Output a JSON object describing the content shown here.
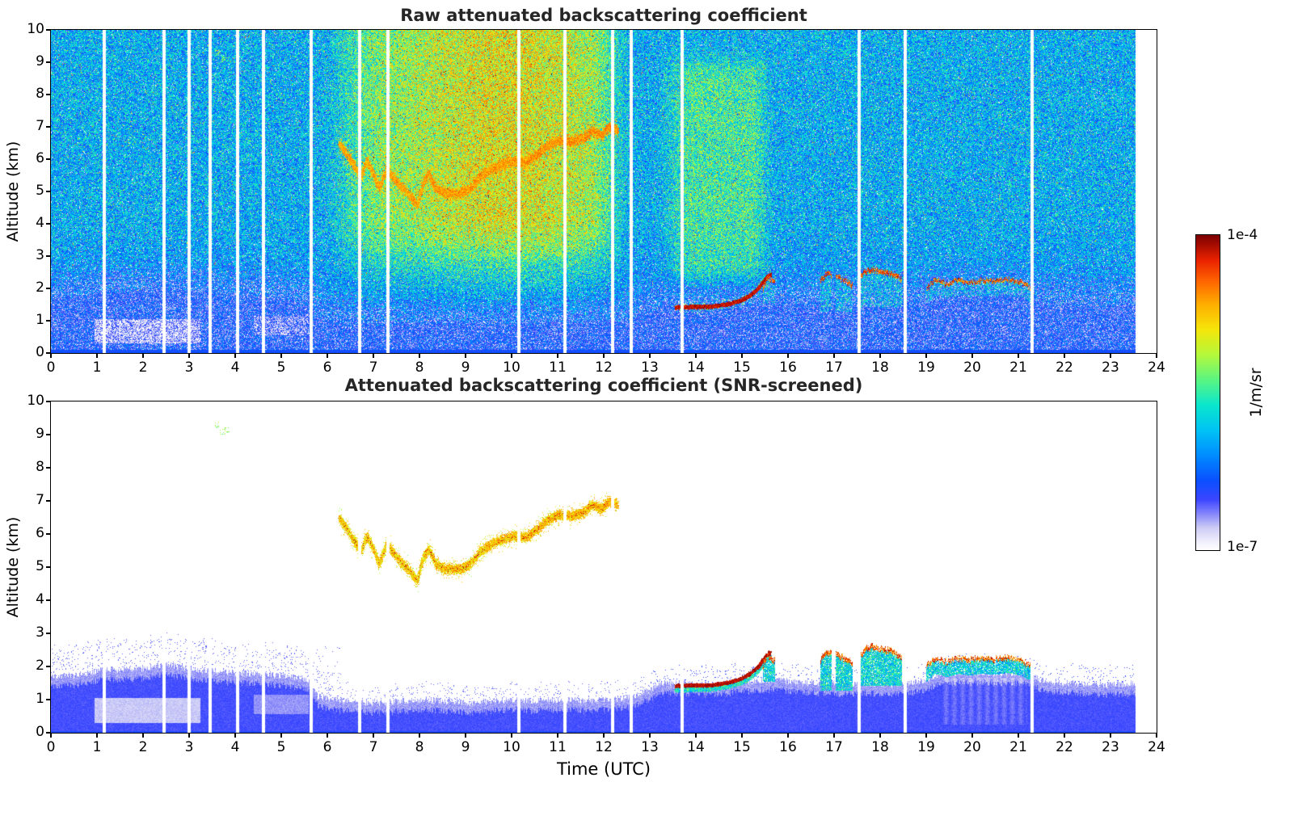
{
  "colorbar": {
    "top_label": "1e-4",
    "bottom_label": "1e-7",
    "unit_label": "1/m/sr",
    "scale": "log",
    "vmin": 1e-07,
    "vmax": 0.0001
  },
  "chart_data": [
    {
      "type": "heatmap",
      "title": "Raw attenuated backscattering coefficient",
      "xlabel": "",
      "ylabel": "Altitude (km)",
      "xlim": [
        0,
        24
      ],
      "ylim": [
        0,
        10
      ],
      "xticks": [
        0,
        1,
        2,
        3,
        4,
        5,
        6,
        7,
        8,
        9,
        10,
        11,
        12,
        13,
        14,
        15,
        16,
        17,
        18,
        19,
        20,
        21,
        22,
        23,
        24
      ],
      "yticks": [
        0,
        1,
        2,
        3,
        4,
        5,
        6,
        7,
        8,
        9,
        10
      ],
      "units": "1/m/sr",
      "value_range": [
        "1e-7",
        "1e-4"
      ],
      "summary": "Unscreened lidar speckle over full frame: dense blue boundary layer below ~2 km, cyan-green night noise aloft, orange-red daytime solar background 06:00-12:30 UTC above ~3 km, yellow-green noise band 13:15-15:40 UTC, elevated aerosol layer 4.5-7.2 km (06:15-12:20 UTC) and low clouds 1.4-2.6 km (13:30-21:15 UTC)"
    },
    {
      "type": "heatmap",
      "title": "Attenuated backscattering coefficient (SNR-screened)",
      "xlabel": "Time (UTC)",
      "ylabel": "Altitude (km)",
      "xlim": [
        0,
        24
      ],
      "ylim": [
        0,
        10
      ],
      "xticks": [
        0,
        1,
        2,
        3,
        4,
        5,
        6,
        7,
        8,
        9,
        10,
        11,
        12,
        13,
        14,
        15,
        16,
        17,
        18,
        19,
        20,
        21,
        22,
        23,
        24
      ],
      "yticks": [
        0,
        1,
        2,
        3,
        4,
        5,
        6,
        7,
        8,
        9,
        10
      ],
      "units": "1/m/sr",
      "value_range": [
        "1e-7",
        "1e-4"
      ],
      "summary": "Low-SNR pixels removed (white). Blue boundary layer 0-2 km all day, yellow-orange elevated aerosol layer 4.5-7.2 km between 06:15-12:20 UTC, shallow cloud layers near 1.4-2.6 km between 13:30-21:15 UTC"
    }
  ],
  "scene": {
    "time_end": 23.55,
    "gap_times": [
      1.15,
      2.45,
      3.0,
      3.45,
      4.05,
      4.62,
      5.65,
      6.7,
      7.32,
      10.15,
      11.15,
      12.2,
      12.6,
      13.7,
      17.55,
      18.55,
      21.3
    ],
    "gap_width": 0.07,
    "boundary_layer_depth": [
      [
        0,
        1.7
      ],
      [
        0.6,
        1.75
      ],
      [
        1.1,
        1.9
      ],
      [
        1.6,
        1.9
      ],
      [
        2.1,
        1.95
      ],
      [
        2.45,
        2.05
      ],
      [
        2.8,
        2.0
      ],
      [
        3.1,
        1.9
      ],
      [
        3.5,
        1.85
      ],
      [
        4.1,
        1.8
      ],
      [
        4.7,
        1.75
      ],
      [
        5.2,
        1.7
      ],
      [
        5.6,
        1.6
      ],
      [
        5.8,
        1.1
      ],
      [
        6.1,
        1.0
      ],
      [
        6.6,
        0.95
      ],
      [
        7.1,
        0.9
      ],
      [
        7.6,
        0.95
      ],
      [
        8.1,
        1.0
      ],
      [
        8.6,
        0.95
      ],
      [
        9.1,
        0.9
      ],
      [
        9.6,
        0.95
      ],
      [
        10.1,
        1.0
      ],
      [
        10.6,
        0.95
      ],
      [
        11.1,
        1.0
      ],
      [
        11.6,
        0.95
      ],
      [
        12.1,
        1.0
      ],
      [
        12.5,
        1.05
      ],
      [
        12.9,
        1.25
      ],
      [
        13.3,
        1.5
      ],
      [
        13.7,
        1.5
      ],
      [
        14.2,
        1.45
      ],
      [
        14.7,
        1.5
      ],
      [
        15.1,
        1.55
      ],
      [
        15.6,
        1.6
      ],
      [
        16.1,
        1.55
      ],
      [
        16.6,
        1.5
      ],
      [
        17.1,
        1.45
      ],
      [
        17.6,
        1.5
      ],
      [
        18.1,
        1.45
      ],
      [
        18.6,
        1.5
      ],
      [
        19.0,
        1.6
      ],
      [
        19.3,
        1.8
      ],
      [
        20.0,
        1.8
      ],
      [
        20.6,
        1.8
      ],
      [
        21.1,
        1.8
      ],
      [
        21.3,
        1.7
      ],
      [
        21.6,
        1.55
      ],
      [
        22.1,
        1.5
      ],
      [
        22.6,
        1.45
      ],
      [
        23.1,
        1.45
      ],
      [
        23.55,
        1.5
      ]
    ],
    "aerosol_layer_path": [
      [
        6.25,
        6.5
      ],
      [
        6.42,
        6.15
      ],
      [
        6.58,
        5.8
      ],
      [
        6.72,
        5.45
      ],
      [
        6.85,
        5.95
      ],
      [
        7.0,
        5.55
      ],
      [
        7.12,
        5.1
      ],
      [
        7.28,
        5.7
      ],
      [
        7.45,
        5.4
      ],
      [
        7.6,
        5.15
      ],
      [
        7.78,
        4.9
      ],
      [
        7.95,
        4.6
      ],
      [
        8.08,
        5.3
      ],
      [
        8.2,
        5.55
      ],
      [
        8.35,
        5.1
      ],
      [
        8.55,
        4.95
      ],
      [
        8.9,
        4.95
      ],
      [
        9.1,
        5.1
      ],
      [
        9.3,
        5.45
      ],
      [
        9.55,
        5.7
      ],
      [
        9.8,
        5.85
      ],
      [
        10.05,
        5.95
      ],
      [
        10.3,
        5.9
      ],
      [
        10.55,
        6.15
      ],
      [
        10.8,
        6.45
      ],
      [
        11.05,
        6.6
      ],
      [
        11.3,
        6.55
      ],
      [
        11.55,
        6.65
      ],
      [
        11.75,
        6.9
      ],
      [
        11.95,
        6.75
      ],
      [
        12.1,
        7.0
      ],
      [
        12.3,
        6.9
      ]
    ],
    "cloud_line_path": [
      [
        13.55,
        1.42
      ],
      [
        13.9,
        1.44
      ],
      [
        14.3,
        1.44
      ],
      [
        14.7,
        1.52
      ],
      [
        15.0,
        1.65
      ],
      [
        15.2,
        1.82
      ],
      [
        15.35,
        2.0
      ],
      [
        15.5,
        2.3
      ],
      [
        15.62,
        2.45
      ]
    ],
    "cloud_clusters": [
      {
        "t0": 16.7,
        "t1": 17.38,
        "base": 1.3,
        "gap": [
          16.95,
          17.03
        ],
        "tops": [
          [
            16.7,
            2.25
          ],
          [
            16.8,
            2.45
          ],
          [
            16.9,
            2.5
          ],
          [
            17.03,
            2.45
          ],
          [
            17.15,
            2.35
          ],
          [
            17.27,
            2.3
          ],
          [
            17.38,
            2.15
          ]
        ]
      },
      {
        "t0": 17.55,
        "t1": 18.45,
        "base": 1.45,
        "tops": [
          [
            17.55,
            2.4
          ],
          [
            17.7,
            2.6
          ],
          [
            17.85,
            2.65
          ],
          [
            18.0,
            2.6
          ],
          [
            18.15,
            2.55
          ],
          [
            18.3,
            2.5
          ],
          [
            18.45,
            2.35
          ]
        ]
      },
      {
        "t0": 15.45,
        "t1": 15.7,
        "base": 1.55,
        "tops": [
          [
            15.45,
            2.05
          ],
          [
            15.55,
            2.4
          ],
          [
            15.7,
            2.25
          ]
        ]
      }
    ],
    "cloud_band": {
      "t0": 19.0,
      "t1": 21.25,
      "thickness": 0.5,
      "tops": [
        [
          19.0,
          2.05
        ],
        [
          19.2,
          2.3
        ],
        [
          19.45,
          2.2
        ],
        [
          19.7,
          2.3
        ],
        [
          19.95,
          2.25
        ],
        [
          20.2,
          2.3
        ],
        [
          20.5,
          2.28
        ],
        [
          20.8,
          2.32
        ],
        [
          21.05,
          2.25
        ],
        [
          21.25,
          2.1
        ]
      ]
    },
    "light_patches": [
      {
        "t": [
          0.95,
          3.25
        ],
        "alt": [
          0.3,
          1.05
        ],
        "strength": 0.085
      },
      {
        "t": [
          4.4,
          5.6
        ],
        "alt": [
          0.55,
          1.15
        ],
        "strength": 0.05
      }
    ],
    "high_specks": [
      [
        3.62,
        9.3
      ],
      [
        3.72,
        9.1
      ],
      [
        3.8,
        9.15
      ]
    ]
  }
}
